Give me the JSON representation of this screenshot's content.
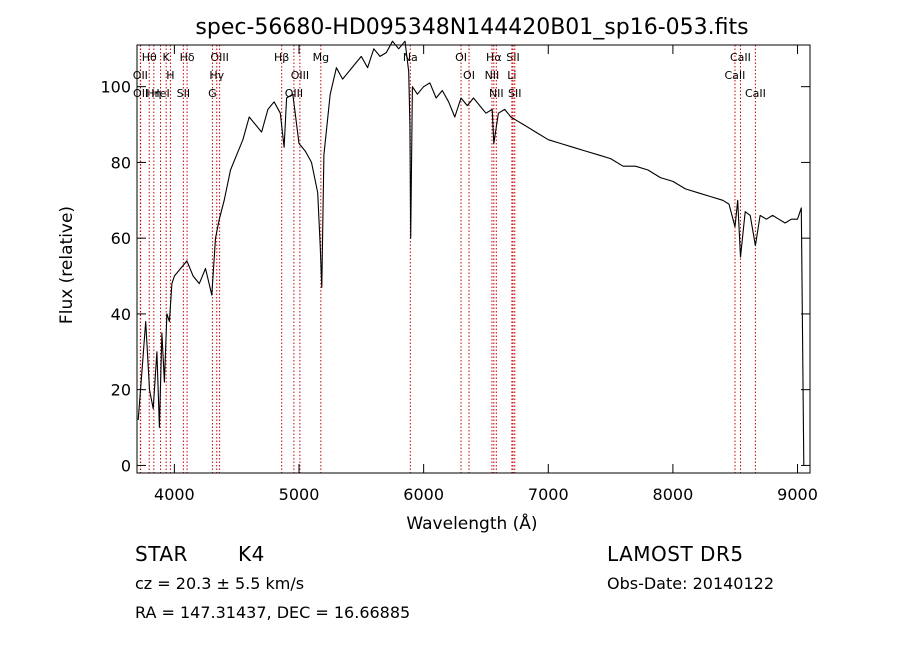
{
  "chart_data": {
    "type": "line",
    "title": "spec-56680-HD095348N144420B01_sp16-053.fits",
    "xlabel": "Wavelength (Å)",
    "ylabel": "Flux (relative)",
    "xlim": [
      3700,
      9100
    ],
    "ylim": [
      -2,
      111
    ],
    "xticks": [
      4000,
      5000,
      6000,
      7000,
      8000,
      9000
    ],
    "yticks": [
      0,
      20,
      40,
      60,
      80,
      100
    ],
    "grid": false,
    "line_color": "#000000",
    "marker_color": "#cc0000",
    "series": [
      {
        "x": [
          3710,
          3740,
          3770,
          3800,
          3830,
          3860,
          3880,
          3900,
          3920,
          3940,
          3960,
          3980,
          4000,
          4050,
          4100,
          4150,
          4200,
          4250,
          4300,
          4330,
          4360,
          4400,
          4450,
          4500,
          4550,
          4600,
          4650,
          4700,
          4750,
          4800,
          4850,
          4880,
          4900,
          4950,
          5000,
          5050,
          5100,
          5150,
          5170,
          5183,
          5200,
          5250,
          5300,
          5350,
          5400,
          5450,
          5500,
          5550,
          5600,
          5650,
          5700,
          5750,
          5800,
          5850,
          5880,
          5890,
          5896,
          5910,
          5950,
          6000,
          6050,
          6100,
          6150,
          6200,
          6250,
          6300,
          6350,
          6400,
          6450,
          6500,
          6550,
          6563,
          6600,
          6650,
          6700,
          6750,
          6800,
          6900,
          7000,
          7100,
          7200,
          7300,
          7400,
          7500,
          7600,
          7700,
          7800,
          7900,
          8000,
          8100,
          8200,
          8300,
          8400,
          8450,
          8498,
          8520,
          8542,
          8580,
          8620,
          8662,
          8700,
          8750,
          8800,
          8850,
          8900,
          8950,
          9000,
          9030,
          9050
        ],
        "y": [
          12,
          25,
          38,
          20,
          15,
          30,
          10,
          35,
          22,
          40,
          38,
          48,
          50,
          52,
          54,
          50,
          48,
          52,
          45,
          60,
          65,
          70,
          78,
          82,
          86,
          92,
          90,
          88,
          94,
          96,
          93,
          84,
          97,
          98,
          85,
          83,
          80,
          72,
          58,
          47,
          82,
          98,
          105,
          102,
          104,
          106,
          108,
          105,
          110,
          108,
          109,
          112,
          110,
          112,
          104,
          90,
          60,
          100,
          98,
          100,
          101,
          97,
          99,
          96,
          92,
          97,
          95,
          97,
          95,
          93,
          94,
          85,
          93,
          94,
          92,
          91,
          90,
          88,
          86,
          85,
          84,
          83,
          82,
          81,
          79,
          79,
          78,
          76,
          75,
          73,
          72,
          71,
          70,
          69,
          63,
          70,
          55,
          67,
          66,
          58,
          66,
          65,
          66,
          65,
          64,
          65,
          65,
          68,
          0
        ]
      }
    ],
    "line_markers": [
      {
        "label": "Hθ",
        "x": 3798
      },
      {
        "label": "OII",
        "x": 3727
      },
      {
        "label": "OII",
        "x": 3729
      },
      {
        "label": "HeI",
        "x": 3889
      },
      {
        "label": "Hη",
        "x": 3835
      },
      {
        "label": "K",
        "x": 3934
      },
      {
        "label": "H",
        "x": 3968
      },
      {
        "label": "Hδ",
        "x": 4102
      },
      {
        "label": "SII",
        "x": 4072
      },
      {
        "label": "OIII",
        "x": 4363
      },
      {
        "label": "Hγ",
        "x": 4340
      },
      {
        "label": "G",
        "x": 4305
      },
      {
        "label": "Hβ",
        "x": 4861
      },
      {
        "label": "OIII",
        "x": 5007
      },
      {
        "label": "OIII",
        "x": 4959
      },
      {
        "label": "Mg",
        "x": 5175
      },
      {
        "label": "Na",
        "x": 5893
      },
      {
        "label": "OI",
        "x": 6300
      },
      {
        "label": "OI",
        "x": 6364
      },
      {
        "label": "Hα",
        "x": 6563
      },
      {
        "label": "NII",
        "x": 6548
      },
      {
        "label": "NII",
        "x": 6583
      },
      {
        "label": "SII",
        "x": 6717
      },
      {
        "label": "Li",
        "x": 6708
      },
      {
        "label": "SII",
        "x": 6731
      },
      {
        "label": "CaII",
        "x": 8542
      },
      {
        "label": "CaII",
        "x": 8498
      },
      {
        "label": "CaII",
        "x": 8662
      }
    ]
  },
  "info": {
    "class_label": "STAR",
    "subclass": "K4",
    "redshift": "cz = 20.3 ± 5.5 km/s",
    "coordinates": "RA = 147.31437, DEC =  16.66885",
    "survey": "LAMOST DR5",
    "obs_date": "Obs-Date: 20140122"
  }
}
